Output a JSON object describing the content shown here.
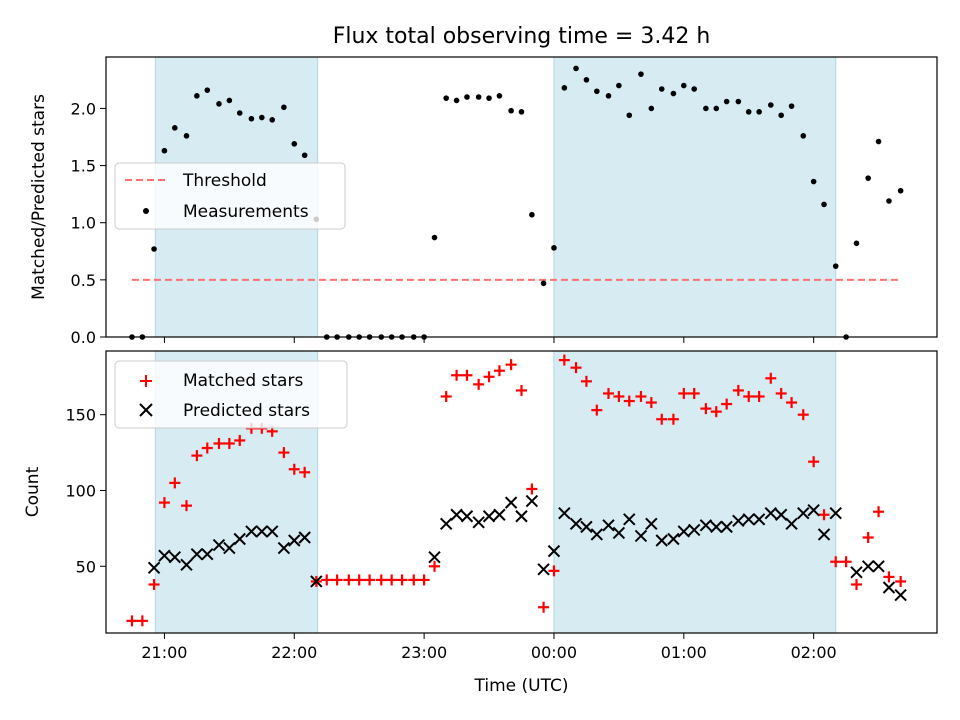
{
  "chart_data": {
    "title": "Flux total observing time = 3.42 h",
    "xlabel": "Time (UTC)",
    "x_ticks": [
      "21:00",
      "22:00",
      "23:00",
      "00:00",
      "01:00",
      "02:00"
    ],
    "x_range_hours": [
      20.55,
      26.95
    ],
    "shaded_intervals_hours": [
      [
        20.93,
        22.18
      ],
      [
        24.0,
        26.17
      ]
    ],
    "shade_color": "#add8e6",
    "panels": [
      {
        "type": "scatter",
        "ylabel": "Matched/Predicted stars",
        "ylim": [
          0,
          2.45
        ],
        "yticks": [
          "0.0",
          "0.5",
          "1.0",
          "1.5",
          "2.0"
        ],
        "legend_position": "center-left",
        "series": [
          {
            "name": "Threshold",
            "kind": "dashed-line",
            "color": "#ff7070",
            "y": 0.5,
            "x_from": 20.75,
            "x_to": 26.67
          },
          {
            "name": "Measurements",
            "kind": "dots",
            "color": "#000000",
            "points": [
              [
                20.75,
                0.0
              ],
              [
                20.83,
                0.0
              ],
              [
                20.92,
                0.77
              ],
              [
                21.0,
                1.63
              ],
              [
                21.08,
                1.83
              ],
              [
                21.17,
                1.76
              ],
              [
                21.25,
                2.11
              ],
              [
                21.33,
                2.16
              ],
              [
                21.42,
                2.04
              ],
              [
                21.5,
                2.07
              ],
              [
                21.58,
                1.96
              ],
              [
                21.67,
                1.91
              ],
              [
                21.75,
                1.92
              ],
              [
                21.83,
                1.9
              ],
              [
                21.92,
                2.01
              ],
              [
                22.0,
                1.69
              ],
              [
                22.08,
                1.59
              ],
              [
                22.17,
                1.03
              ],
              [
                22.25,
                0.0
              ],
              [
                22.33,
                0.0
              ],
              [
                22.42,
                0.0
              ],
              [
                22.5,
                0.0
              ],
              [
                22.58,
                0.0
              ],
              [
                22.67,
                0.0
              ],
              [
                22.75,
                0.0
              ],
              [
                22.83,
                0.0
              ],
              [
                22.92,
                0.0
              ],
              [
                23.0,
                0.0
              ],
              [
                23.08,
                0.87
              ],
              [
                23.17,
                2.09
              ],
              [
                23.25,
                2.07
              ],
              [
                23.33,
                2.1
              ],
              [
                23.42,
                2.1
              ],
              [
                23.5,
                2.09
              ],
              [
                23.58,
                2.11
              ],
              [
                23.67,
                1.98
              ],
              [
                23.75,
                1.97
              ],
              [
                23.83,
                1.07
              ],
              [
                23.92,
                0.47
              ],
              [
                24.0,
                0.78
              ],
              [
                24.08,
                2.18
              ],
              [
                24.17,
                2.35
              ],
              [
                24.25,
                2.25
              ],
              [
                24.33,
                2.15
              ],
              [
                24.42,
                2.11
              ],
              [
                24.5,
                2.2
              ],
              [
                24.58,
                1.94
              ],
              [
                24.67,
                2.3
              ],
              [
                24.75,
                2.0
              ],
              [
                24.83,
                2.17
              ],
              [
                24.92,
                2.13
              ],
              [
                25.0,
                2.2
              ],
              [
                25.08,
                2.17
              ],
              [
                25.17,
                2.0
              ],
              [
                25.25,
                2.0
              ],
              [
                25.33,
                2.06
              ],
              [
                25.42,
                2.06
              ],
              [
                25.5,
                1.97
              ],
              [
                25.58,
                1.97
              ],
              [
                25.67,
                2.03
              ],
              [
                25.75,
                1.94
              ],
              [
                25.83,
                2.02
              ],
              [
                25.92,
                1.76
              ],
              [
                26.0,
                1.36
              ],
              [
                26.08,
                1.16
              ],
              [
                26.17,
                0.62
              ],
              [
                26.25,
                0.0
              ],
              [
                26.33,
                0.82
              ],
              [
                26.42,
                1.39
              ],
              [
                26.5,
                1.71
              ],
              [
                26.58,
                1.19
              ],
              [
                26.67,
                1.28
              ]
            ]
          }
        ]
      },
      {
        "type": "scatter",
        "ylabel": "Count",
        "ylim": [
          6,
          192
        ],
        "yticks": [
          "50",
          "100",
          "150"
        ],
        "legend_position": "upper-left",
        "series": [
          {
            "name": "Matched stars",
            "kind": "plus",
            "color": "#ff0000",
            "points": [
              [
                20.75,
                14
              ],
              [
                20.83,
                14
              ],
              [
                20.92,
                38
              ],
              [
                21.0,
                92
              ],
              [
                21.08,
                105
              ],
              [
                21.17,
                90
              ],
              [
                21.25,
                123
              ],
              [
                21.33,
                128
              ],
              [
                21.42,
                131
              ],
              [
                21.5,
                131
              ],
              [
                21.58,
                133
              ],
              [
                21.67,
                141
              ],
              [
                21.75,
                141
              ],
              [
                21.83,
                139
              ],
              [
                21.92,
                125
              ],
              [
                22.0,
                114
              ],
              [
                22.08,
                112
              ],
              [
                22.17,
                40
              ],
              [
                22.25,
                41
              ],
              [
                22.33,
                41
              ],
              [
                22.42,
                41
              ],
              [
                22.5,
                41
              ],
              [
                22.58,
                41
              ],
              [
                22.67,
                41
              ],
              [
                22.75,
                41
              ],
              [
                22.83,
                41
              ],
              [
                22.92,
                41
              ],
              [
                23.0,
                41
              ],
              [
                23.08,
                50
              ],
              [
                23.17,
                162
              ],
              [
                23.25,
                176
              ],
              [
                23.33,
                176
              ],
              [
                23.42,
                170
              ],
              [
                23.5,
                175
              ],
              [
                23.58,
                179
              ],
              [
                23.67,
                183
              ],
              [
                23.75,
                166
              ],
              [
                23.83,
                101
              ],
              [
                23.92,
                23
              ],
              [
                24.0,
                47
              ],
              [
                24.08,
                186
              ],
              [
                24.17,
                181
              ],
              [
                24.25,
                172
              ],
              [
                24.33,
                153
              ],
              [
                24.42,
                164
              ],
              [
                24.5,
                162
              ],
              [
                24.58,
                159
              ],
              [
                24.67,
                162
              ],
              [
                24.75,
                158
              ],
              [
                24.83,
                147
              ],
              [
                24.92,
                147
              ],
              [
                25.0,
                164
              ],
              [
                25.08,
                164
              ],
              [
                25.17,
                154
              ],
              [
                25.25,
                152
              ],
              [
                25.33,
                157
              ],
              [
                25.42,
                166
              ],
              [
                25.5,
                162
              ],
              [
                25.58,
                162
              ],
              [
                25.67,
                174
              ],
              [
                25.75,
                164
              ],
              [
                25.83,
                158
              ],
              [
                25.92,
                150
              ],
              [
                26.0,
                119
              ],
              [
                26.08,
                84
              ],
              [
                26.17,
                53
              ],
              [
                26.25,
                53
              ],
              [
                26.33,
                38
              ],
              [
                26.42,
                69
              ],
              [
                26.5,
                86
              ],
              [
                26.58,
                43
              ],
              [
                26.67,
                40
              ]
            ]
          },
          {
            "name": "Predicted stars",
            "kind": "x",
            "color": "#000000",
            "points": [
              [
                20.92,
                49
              ],
              [
                21.0,
                57
              ],
              [
                21.08,
                56
              ],
              [
                21.17,
                51
              ],
              [
                21.25,
                58
              ],
              [
                21.33,
                58
              ],
              [
                21.42,
                64
              ],
              [
                21.5,
                62
              ],
              [
                21.58,
                68
              ],
              [
                21.67,
                73
              ],
              [
                21.75,
                73
              ],
              [
                21.83,
                73
              ],
              [
                21.92,
                62
              ],
              [
                22.0,
                67
              ],
              [
                22.08,
                69
              ],
              [
                22.17,
                40
              ],
              [
                23.08,
                56
              ],
              [
                23.17,
                78
              ],
              [
                23.25,
                84
              ],
              [
                23.33,
                83
              ],
              [
                23.42,
                79
              ],
              [
                23.5,
                83
              ],
              [
                23.58,
                84
              ],
              [
                23.67,
                92
              ],
              [
                23.75,
                83
              ],
              [
                23.83,
                93
              ],
              [
                23.92,
                48
              ],
              [
                24.0,
                60
              ],
              [
                24.08,
                85
              ],
              [
                24.17,
                78
              ],
              [
                24.25,
                76
              ],
              [
                24.33,
                71
              ],
              [
                24.42,
                77
              ],
              [
                24.5,
                72
              ],
              [
                24.58,
                81
              ],
              [
                24.67,
                70
              ],
              [
                24.75,
                78
              ],
              [
                24.83,
                67
              ],
              [
                24.92,
                68
              ],
              [
                25.0,
                73
              ],
              [
                25.08,
                74
              ],
              [
                25.17,
                77
              ],
              [
                25.25,
                76
              ],
              [
                25.33,
                76
              ],
              [
                25.42,
                80
              ],
              [
                25.5,
                81
              ],
              [
                25.58,
                81
              ],
              [
                25.67,
                85
              ],
              [
                25.75,
                84
              ],
              [
                25.83,
                78
              ],
              [
                25.92,
                85
              ],
              [
                26.0,
                87
              ],
              [
                26.08,
                71
              ],
              [
                26.17,
                85
              ],
              [
                26.33,
                46
              ],
              [
                26.42,
                50
              ],
              [
                26.5,
                50
              ],
              [
                26.58,
                36
              ],
              [
                26.67,
                31
              ]
            ]
          }
        ]
      }
    ]
  }
}
